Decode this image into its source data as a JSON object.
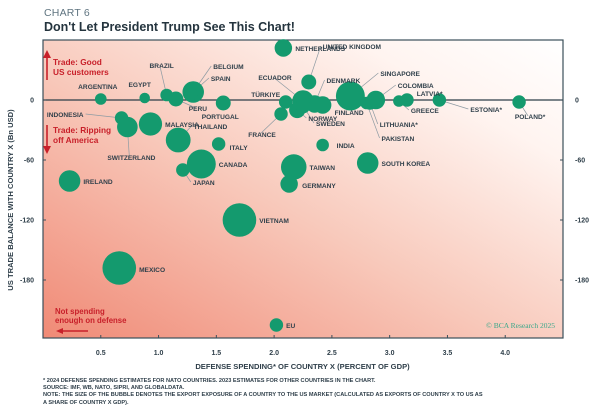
{
  "header": {
    "kicker": "CHART 6",
    "title": "Don't Let President Trump See This Chart!"
  },
  "chart_data": {
    "type": "scatter",
    "subtype": "bubble",
    "title": "Don't Let President Trump See This Chart!",
    "xlabel": "DEFENSE SPENDING* OF COUNTRY X (PERCENT OF GDP)",
    "ylabel": "US TRADE BALANCE WITH COUNTRY X (Bn USD)",
    "xlim": [
      0,
      4.5
    ],
    "ylim": [
      -238,
      60
    ],
    "xticks": [
      0.5,
      1.0,
      1.5,
      2.0,
      2.5,
      3.0,
      3.5,
      4.0
    ],
    "xtick_labels": [
      "0.5",
      "1.0",
      "1.5",
      "2.0",
      "2.5",
      "3.0",
      "3.5",
      "4.0"
    ],
    "yticks": [
      0,
      -60,
      -120,
      -180
    ],
    "ytick_labels": [
      "0",
      "-60",
      "-120",
      "-180"
    ],
    "y_axis_both_sides": true,
    "grid": false,
    "size_variable": "Export exposure to US market (% of country GDP)",
    "bubble_color": "#149a6e",
    "background": "red-to-white gradient from bottom-left to top-right",
    "annotations": [
      {
        "text": "Trade: Good",
        "text2": "US customers",
        "arrow": "up",
        "position": "upper-left"
      },
      {
        "text": "Trade: Ripping",
        "text2": "off America",
        "arrow": "down",
        "position": "left"
      },
      {
        "text": "Not spending",
        "text2": "enough on defense",
        "arrow": "left",
        "position": "bottom-left"
      }
    ],
    "annotation_color": "#c8202a",
    "copyright": "© BCA Research 2025",
    "points": [
      {
        "label": "NETHERLANDS",
        "x": 2.08,
        "y": 52,
        "size": 6
      },
      {
        "label": "ARGENTINA",
        "x": 0.5,
        "y": 1,
        "size": 2
      },
      {
        "label": "EGYPT",
        "x": 0.88,
        "y": 2,
        "size": 1.5
      },
      {
        "label": "BRAZIL",
        "x": 1.07,
        "y": 5,
        "size": 2.5
      },
      {
        "label": "PERU",
        "x": 1.15,
        "y": 1,
        "size": 4
      },
      {
        "label": "BELGIUM",
        "x": 1.3,
        "y": 8,
        "size": 10
      },
      {
        "label": "SPAIN",
        "x": 1.28,
        "y": 6,
        "size": 3
      },
      {
        "label": "PORTUGAL",
        "x": 1.56,
        "y": -3,
        "size": 4
      },
      {
        "label": "TÜRKIYE",
        "x": 2.1,
        "y": -2,
        "size": 3
      },
      {
        "label": "ECUADOR",
        "x": 2.25,
        "y": -1,
        "size": 10
      },
      {
        "label": "UNITED KINGDOM",
        "x": 2.3,
        "y": 18,
        "size": 4
      },
      {
        "label": "DENMARK",
        "x": 2.35,
        "y": -4,
        "size": 6
      },
      {
        "label": "FINLAND",
        "x": 2.42,
        "y": -5,
        "size": 6
      },
      {
        "label": "SINGAPORE",
        "x": 2.66,
        "y": 4,
        "size": 20
      },
      {
        "label": "COLOMBIA",
        "x": 2.88,
        "y": 0,
        "size": 7
      },
      {
        "label": "LITHUANIA*",
        "x": 2.83,
        "y": -3,
        "size": 3
      },
      {
        "label": "LATVIA*",
        "x": 3.15,
        "y": 0,
        "size": 3
      },
      {
        "label": "GREECE",
        "x": 3.08,
        "y": -1,
        "size": 2
      },
      {
        "label": "ESTONIA*",
        "x": 3.43,
        "y": 0,
        "size": 3
      },
      {
        "label": "POLAND*",
        "x": 4.12,
        "y": -2,
        "size": 3
      },
      {
        "label": "PAKISTAN",
        "x": 2.8,
        "y": -3,
        "size": 2.5
      },
      {
        "label": "NORWAY",
        "x": 2.2,
        "y": -10,
        "size": 5
      },
      {
        "label": "SWEDEN",
        "x": 2.25,
        "y": -6,
        "size": 4
      },
      {
        "label": "FRANCE",
        "x": 2.06,
        "y": -14,
        "size": 3
      },
      {
        "label": "INDIA",
        "x": 2.42,
        "y": -45,
        "size": 2.5
      },
      {
        "label": "INDONESIA",
        "x": 0.68,
        "y": -18,
        "size": 3
      },
      {
        "label": "SWITZERLAND",
        "x": 0.73,
        "y": -27,
        "size": 9
      },
      {
        "label": "MALAYSIA",
        "x": 0.93,
        "y": -24,
        "size": 12
      },
      {
        "label": "THAILAND",
        "x": 1.17,
        "y": -40,
        "size": 14
      },
      {
        "label": "ITALY",
        "x": 1.52,
        "y": -44,
        "size": 3
      },
      {
        "label": "CANADA",
        "x": 1.37,
        "y": -64,
        "size": 20
      },
      {
        "label": "JAPAN",
        "x": 1.21,
        "y": -70,
        "size": 3
      },
      {
        "label": "IRELAND",
        "x": 0.23,
        "y": -81,
        "size": 10
      },
      {
        "label": "TAIWAN",
        "x": 2.17,
        "y": -67,
        "size": 15
      },
      {
        "label": "GERMANY",
        "x": 2.13,
        "y": -84,
        "size": 6
      },
      {
        "label": "SOUTH KOREA",
        "x": 2.81,
        "y": -63,
        "size": 10
      },
      {
        "label": "VIETNAM",
        "x": 1.7,
        "y": -120,
        "size": 28
      },
      {
        "label": "MEXICO",
        "x": 0.66,
        "y": -168,
        "size": 28
      },
      {
        "label": "EU",
        "x": 2.02,
        "y": -225,
        "size": 3
      }
    ]
  },
  "footnotes": {
    "line1": "* 2024 DEFENSE SPENDING ESTIMATES FOR NATO COUNTRIES. 2023 ESTIMATES FOR OTHER COUNTRIES IN THE CHART.",
    "line2": "SOURCE: IMF, WB, NATO, SIPRI, AND GLOBALDATA.",
    "line3": "NOTE: THE SIZE OF THE BUBBLE DENOTES THE EXPORT EXPOSURE OF A COUNTRY TO THE US MARKET (CALCULATED AS EXPORTS OF COUNTRY X TO US AS",
    "line4": "A SHARE OF COUNTRY X GDP)."
  }
}
